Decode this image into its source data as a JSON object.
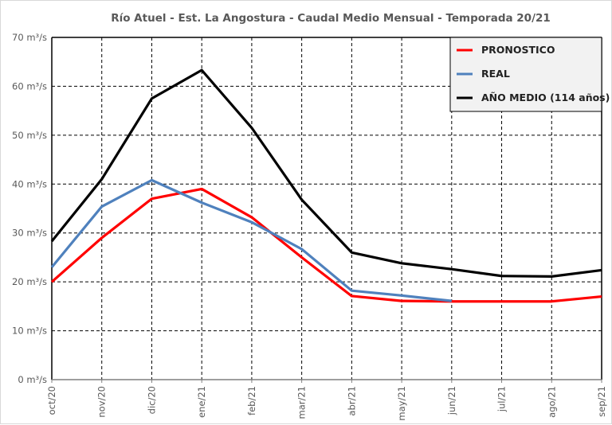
{
  "chart_data": {
    "type": "line",
    "title": "Río Atuel - Est. La Angostura - Caudal Medio Mensual - Temporada 20/21",
    "xlabel": "",
    "ylabel": "",
    "unit_suffix": " m³/s",
    "ylim": [
      0,
      70
    ],
    "ytick_step": 10,
    "yticks": [
      "0 m³/s",
      "10 m³/s",
      "20 m³/s",
      "30 m³/s",
      "40 m³/s",
      "50 m³/s",
      "60 m³/s",
      "70 m³/s"
    ],
    "categories": [
      "oct/20",
      "nov/20",
      "dic/20",
      "ene/21",
      "feb/21",
      "mar/21",
      "abr/21",
      "may/21",
      "jun/21",
      "jul/21",
      "ago/21",
      "sep/21"
    ],
    "grid": true,
    "legend_position": "top-right",
    "series": [
      {
        "name": "PRONOSTICO",
        "color": "#ff0000",
        "values": [
          20.0,
          29.0,
          37.0,
          39.0,
          33.2,
          25.0,
          17.1,
          16.1,
          16.0,
          16.0,
          16.0,
          17.0
        ]
      },
      {
        "name": "REAL",
        "color": "#4f81bd",
        "values": [
          23.0,
          35.4,
          40.8,
          36.2,
          32.2,
          26.7,
          18.2,
          17.2,
          16.1,
          null,
          null,
          null
        ]
      },
      {
        "name": "AÑO MEDIO (114 años)",
        "color": "#000000",
        "values": [
          28.3,
          41.0,
          57.5,
          63.3,
          51.5,
          36.8,
          26.0,
          23.8,
          22.6,
          21.2,
          21.1,
          22.4
        ]
      }
    ]
  }
}
